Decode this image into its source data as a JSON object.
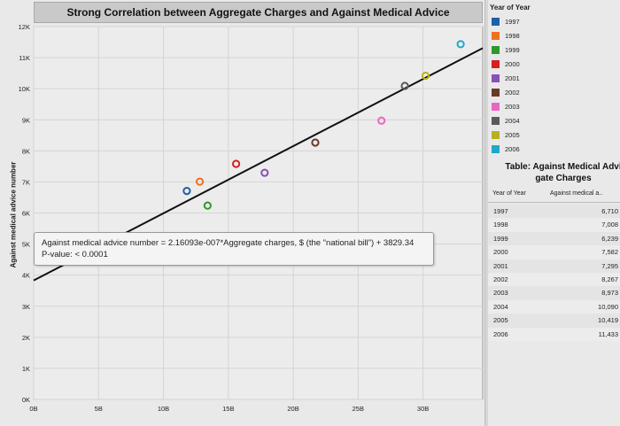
{
  "chart_data": {
    "type": "scatter",
    "title": "Strong Correlation between Aggregate Charges and Against Medical Advice",
    "xlabel": "",
    "ylabel": "Against medical advice number",
    "xlim": [
      0,
      34.6
    ],
    "ylim": [
      0,
      12000
    ],
    "x_ticks": [
      "0B",
      "5B",
      "10B",
      "15B",
      "20B",
      "25B",
      "30B"
    ],
    "y_ticks": [
      "0K",
      "1K",
      "2K",
      "3K",
      "4K",
      "5K",
      "6K",
      "7K",
      "8K",
      "9K",
      "10K",
      "11K",
      "12K"
    ],
    "x_unit": "billion",
    "grid": true,
    "points": [
      {
        "year": "1997",
        "x": 11.8,
        "y": 6710
      },
      {
        "year": "1998",
        "x": 12.8,
        "y": 7008
      },
      {
        "year": "1999",
        "x": 13.4,
        "y": 6239
      },
      {
        "year": "2000",
        "x": 15.6,
        "y": 7582
      },
      {
        "year": "2001",
        "x": 17.8,
        "y": 7295
      },
      {
        "year": "2002",
        "x": 21.7,
        "y": 8267
      },
      {
        "year": "2003",
        "x": 26.8,
        "y": 8973
      },
      {
        "year": "2004",
        "x": 28.6,
        "y": 10090
      },
      {
        "year": "2005",
        "x": 30.2,
        "y": 10419
      },
      {
        "year": "2006",
        "x": 32.9,
        "y": 11433
      }
    ],
    "trend": {
      "slope_per_billion": 216.093,
      "intercept": 3829.34
    },
    "annotation": {
      "line1": "Against medical advice number = 2.16093e-007*Aggregate charges, $ (the \"national bill\") + 3829.34",
      "line2": "P-value: < 0.0001"
    }
  },
  "legend": {
    "title": "Year of Year",
    "items": [
      {
        "label": "1997",
        "color": "#1f5fa8"
      },
      {
        "label": "1998",
        "color": "#f07020"
      },
      {
        "label": "1999",
        "color": "#2a9a2a"
      },
      {
        "label": "2000",
        "color": "#d42020"
      },
      {
        "label": "2001",
        "color": "#8a4fb8"
      },
      {
        "label": "2002",
        "color": "#6b3a2a"
      },
      {
        "label": "2003",
        "color": "#e868c0"
      },
      {
        "label": "2004",
        "color": "#5a5a5a"
      },
      {
        "label": "2005",
        "color": "#b8b020"
      },
      {
        "label": "2006",
        "color": "#20a8c8"
      }
    ]
  },
  "table": {
    "title_line1": "Table: Against Medical Advi",
    "title_line2": "gate Charges",
    "col1": "Year of Year",
    "col2": "Against medical a..",
    "rows": [
      {
        "year": "1997",
        "value": "6,710"
      },
      {
        "year": "1998",
        "value": "7,008"
      },
      {
        "year": "1999",
        "value": "6,239"
      },
      {
        "year": "2000",
        "value": "7,582"
      },
      {
        "year": "2001",
        "value": "7,295"
      },
      {
        "year": "2002",
        "value": "8,267"
      },
      {
        "year": "2003",
        "value": "8,973"
      },
      {
        "year": "2004",
        "value": "10,090"
      },
      {
        "year": "2005",
        "value": "10,419"
      },
      {
        "year": "2006",
        "value": "11,433"
      }
    ]
  }
}
